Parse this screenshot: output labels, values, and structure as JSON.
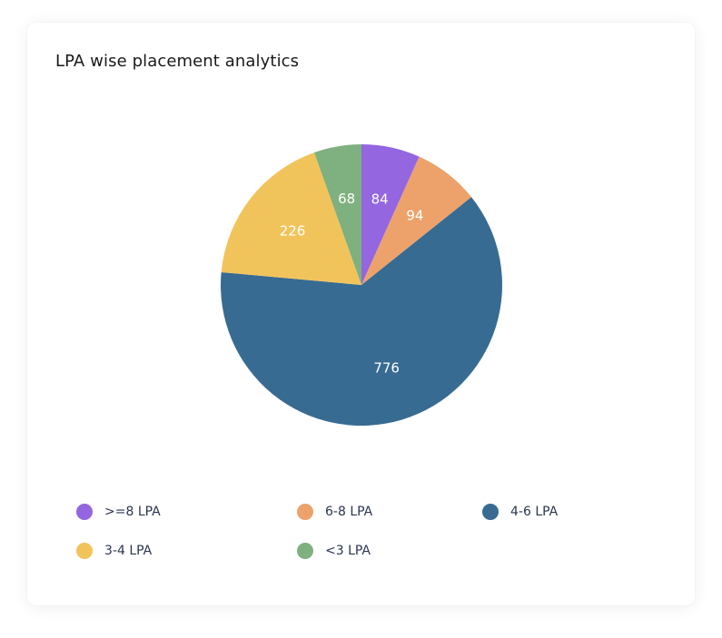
{
  "card": {
    "title": "LPA wise placement analytics"
  },
  "chart_data": {
    "type": "pie",
    "categories": [
      ">=8 LPA",
      "6-8 LPA",
      "4-6 LPA",
      "3-4 LPA",
      "<3 LPA"
    ],
    "values": [
      84,
      94,
      776,
      226,
      68
    ],
    "colors": [
      "#9466e0",
      "#eca26a",
      "#376b92",
      "#f1c45b",
      "#7fb07f"
    ],
    "legend_placement": "bottom",
    "label_color_inside": "#ffffff",
    "label_color_outside": "#6b6b6b"
  }
}
